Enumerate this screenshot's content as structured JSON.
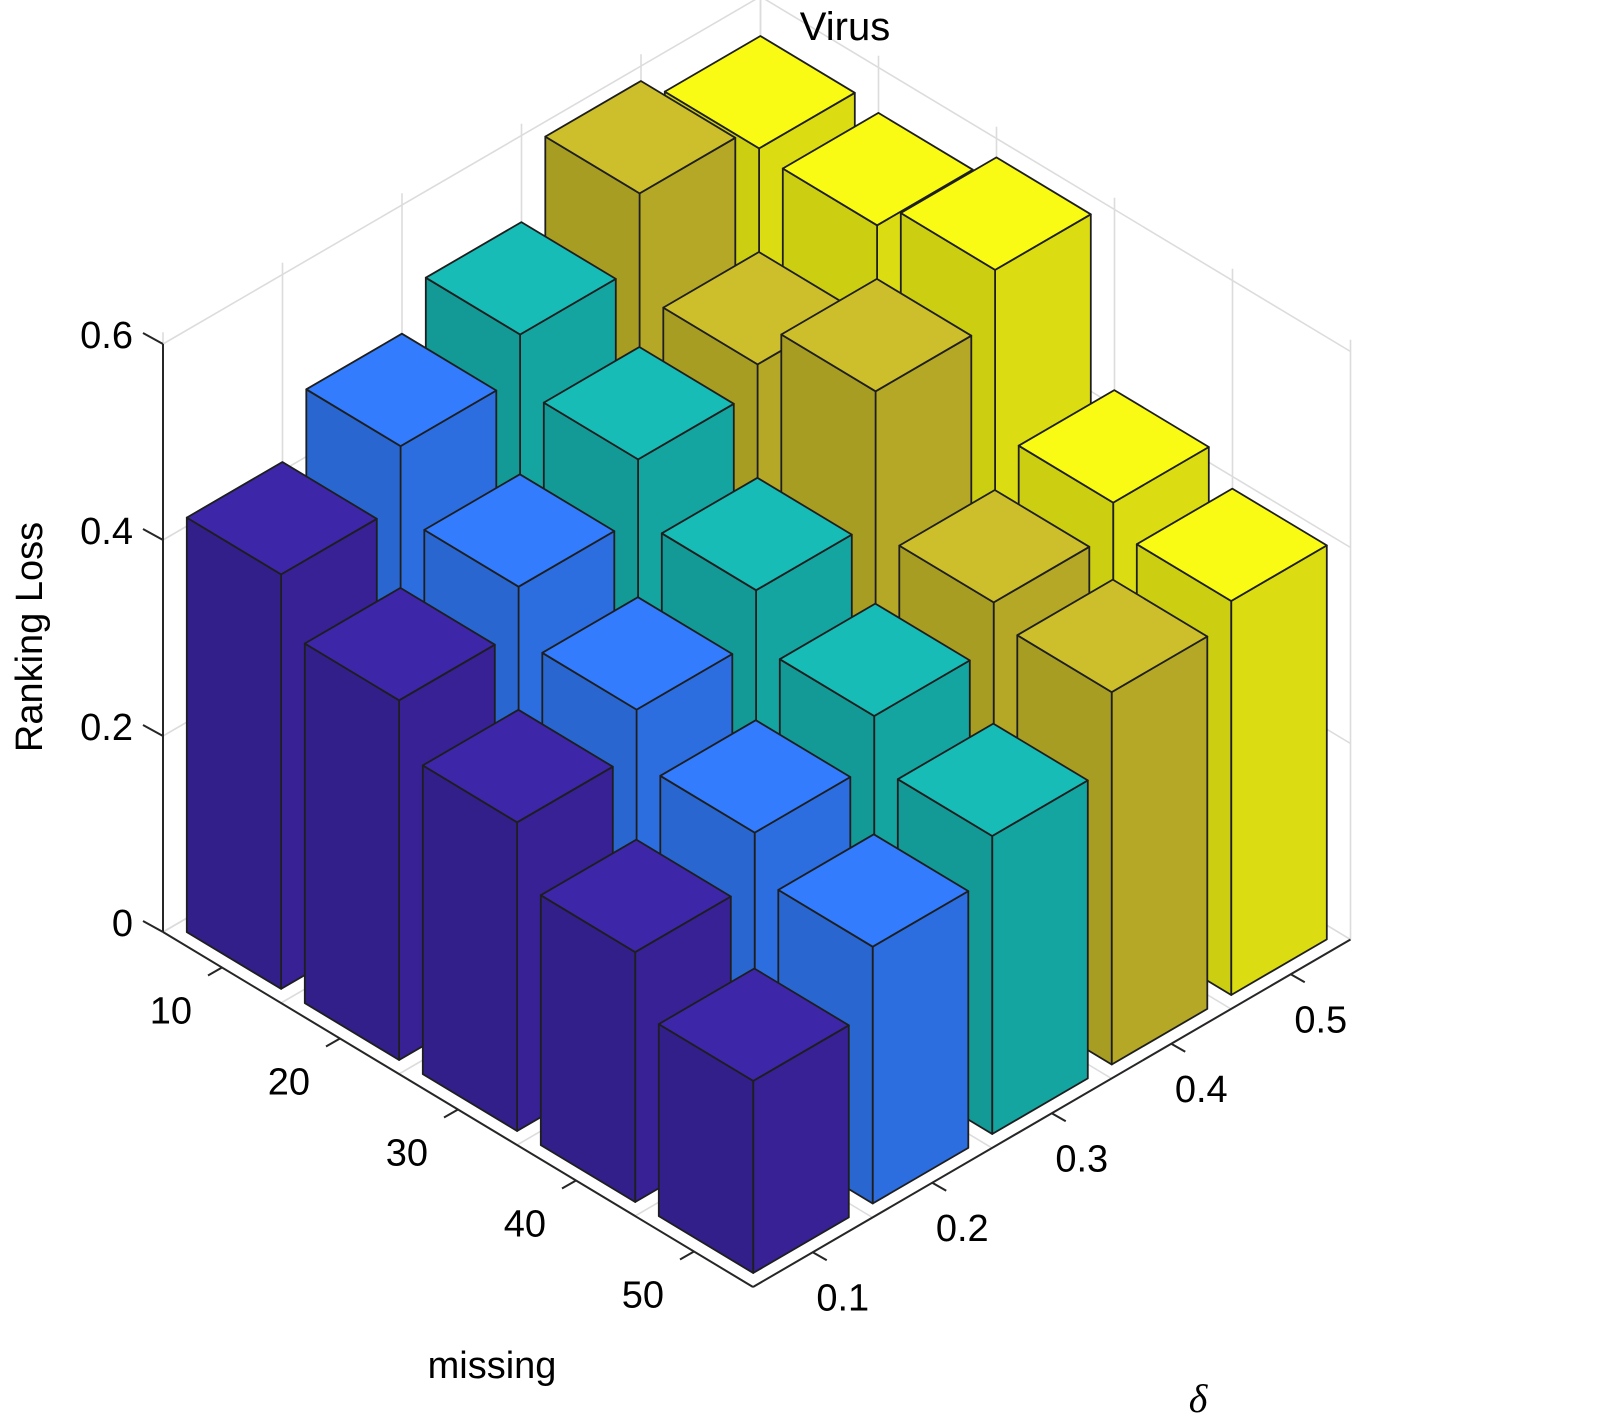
{
  "chart_data": {
    "type": "bar3d",
    "title": "Virus",
    "xlabel": "missing",
    "ylabel": "δ",
    "zlabel": "Ranking Loss",
    "x_categories": [
      "10",
      "20",
      "30",
      "40",
      "50"
    ],
    "y_categories": [
      "0.1",
      "0.2",
      "0.3",
      "0.4",
      "0.5"
    ],
    "zlim": [
      0,
      0.6
    ],
    "z_ticks": [
      "0",
      "0.2",
      "0.4",
      "0.6"
    ],
    "grid": true,
    "series": [
      {
        "delta": "0.1",
        "color": "#3e26a8",
        "values": [
          0.423,
          0.367,
          0.315,
          0.255,
          0.196
        ]
      },
      {
        "delta": "0.2",
        "color": "#327cfd",
        "values": [
          0.483,
          0.412,
          0.359,
          0.306,
          0.262
        ]
      },
      {
        "delta": "0.3",
        "color": "#17bcb7",
        "values": [
          0.526,
          0.471,
          0.41,
          0.354,
          0.304
        ]
      },
      {
        "delta": "0.4",
        "color": "#cdbf2b",
        "values": [
          0.599,
          0.497,
          0.542,
          0.399,
          0.38
        ]
      },
      {
        "delta": "0.5",
        "color": "#f9fb15",
        "values": [
          0.574,
          0.568,
          0.595,
          0.43,
          0.402
        ]
      }
    ]
  }
}
